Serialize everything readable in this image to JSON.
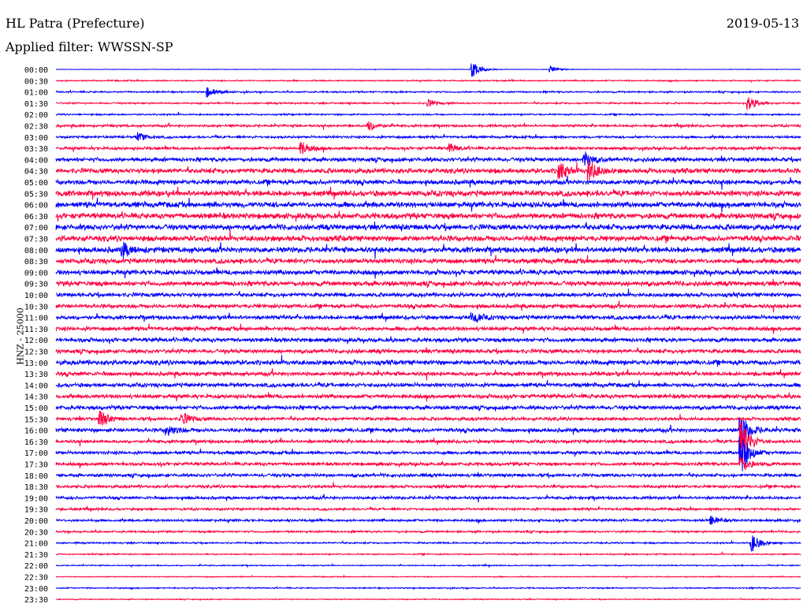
{
  "header": {
    "station": "HL Patra (Prefecture)",
    "filter": "Applied filter: WWSSN-SP",
    "date": "2019-05-13"
  },
  "chart_data": {
    "type": "line",
    "title": "HL Patra (Prefecture)",
    "ylabel": "HNZ - 25000",
    "colors": [
      "#0000ff",
      "#ff0040"
    ],
    "row_labels": [
      "00:00",
      "00:30",
      "01:00",
      "01:30",
      "02:00",
      "02:30",
      "03:00",
      "03:30",
      "04:00",
      "04:30",
      "05:00",
      "05:30",
      "06:00",
      "06:30",
      "07:00",
      "07:30",
      "08:00",
      "08:30",
      "09:00",
      "09:30",
      "10:00",
      "10:30",
      "11:00",
      "11:30",
      "12:00",
      "12:30",
      "13:00",
      "13:30",
      "14:00",
      "14:30",
      "15:00",
      "15:30",
      "16:00",
      "16:30",
      "17:00",
      "17:30",
      "18:00",
      "18:30",
      "19:00",
      "19:30",
      "20:00",
      "20:30",
      "21:00",
      "21:30",
      "22:00",
      "22:30",
      "23:00",
      "23:30"
    ],
    "noise_level": [
      0.3,
      0.8,
      1,
      1,
      1,
      1.5,
      1.5,
      1.8,
      2.5,
      3,
      3,
      3.5,
      3.5,
      3.5,
      3.5,
      3.5,
      3.5,
      3,
      3,
      3,
      2.5,
      2.5,
      2.5,
      2.5,
      2.5,
      2.5,
      3,
      2.5,
      2.5,
      2.5,
      2.5,
      2,
      2.5,
      2,
      2,
      2,
      2,
      1.8,
      1.8,
      1.5,
      1.5,
      1.2,
      1,
      0.8,
      0.7,
      0.6,
      0.8,
      0.6
    ],
    "events": [
      [
        0,
        0.56,
        10
      ],
      [
        0,
        0.665,
        4
      ],
      [
        2,
        0.205,
        6
      ],
      [
        3,
        0.93,
        9
      ],
      [
        3,
        0.5,
        4
      ],
      [
        5,
        0.42,
        6
      ],
      [
        6,
        0.11,
        5
      ],
      [
        7,
        0.33,
        8
      ],
      [
        7,
        0.53,
        5
      ],
      [
        8,
        0.71,
        9
      ],
      [
        9,
        0.677,
        10
      ],
      [
        9,
        0.716,
        13
      ],
      [
        16,
        0.09,
        8
      ],
      [
        22,
        0.56,
        6
      ],
      [
        31,
        0.06,
        9
      ],
      [
        31,
        0.17,
        7
      ],
      [
        32,
        0.15,
        7
      ],
      [
        32,
        0.92,
        22
      ],
      [
        33,
        0.92,
        30
      ],
      [
        34,
        0.92,
        26
      ],
      [
        35,
        0.92,
        10
      ],
      [
        40,
        0.88,
        5
      ],
      [
        42,
        0.935,
        11
      ]
    ]
  }
}
